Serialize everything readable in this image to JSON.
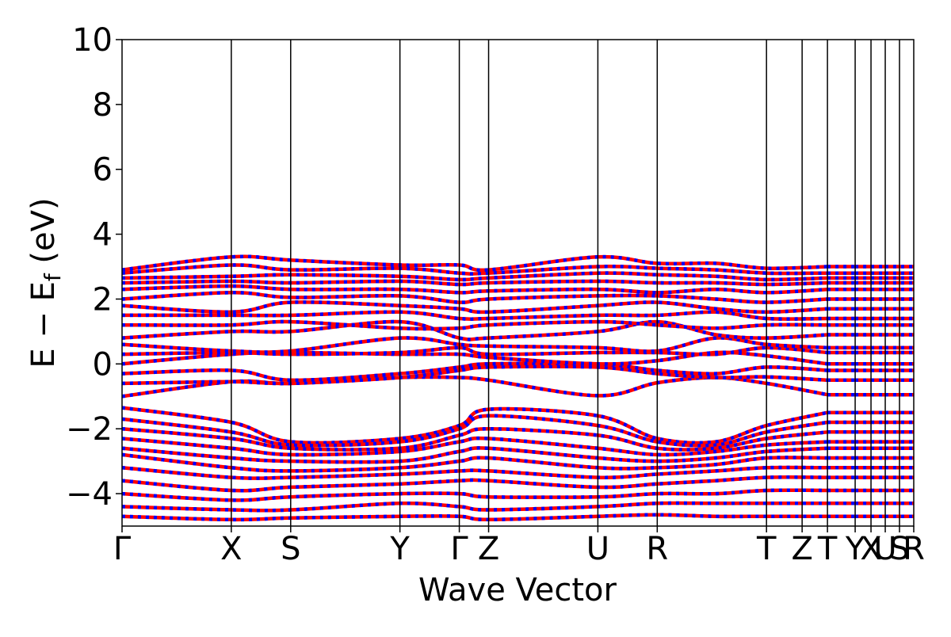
{
  "chart_data": {
    "type": "line",
    "title": "",
    "xlabel": "Wave Vector",
    "ylabel_parts": {
      "main": "E − E",
      "sub": "f",
      "unit": " (eV)"
    },
    "ylim": [
      -5,
      10
    ],
    "yticks": [
      -4,
      -2,
      0,
      2,
      4,
      6,
      8,
      10
    ],
    "ytick_labels": [
      "−4",
      "−2",
      "0",
      "2",
      "4",
      "6",
      "8",
      "10"
    ],
    "xlim": [
      0,
      100
    ],
    "kpoints": [
      {
        "label": "Γ",
        "x": 0
      },
      {
        "label": "X",
        "x": 13.8
      },
      {
        "label": "S",
        "x": 21.3
      },
      {
        "label": "Y",
        "x": 35.1
      },
      {
        "label": "Γ",
        "x": 42.6
      },
      {
        "label": "Z",
        "x": 46.3
      },
      {
        "label": "U",
        "x": 60.1
      },
      {
        "label": "R",
        "x": 67.6
      },
      {
        "label": "T",
        "x": 81.4
      },
      {
        "label": "Z",
        "x": 85.9
      },
      {
        "label": "T",
        "x": 89.1
      },
      {
        "label": "Y",
        "x": 92.6
      },
      {
        "label": "X",
        "x": 94.6
      },
      {
        "label": "U",
        "x": 96.4
      },
      {
        "label": "S",
        "x": 98.2
      },
      {
        "label": "R",
        "x": 100
      }
    ],
    "segments": [
      [
        0,
        89.1
      ],
      [
        89.1,
        92.6
      ],
      [
        92.6,
        96.4
      ],
      [
        96.4,
        100
      ]
    ],
    "grid": false,
    "legend": "none",
    "series_colors": {
      "spin_up": "#0000ff",
      "spin_down": "#ff0000"
    },
    "bands_description_note_removed": true,
    "bands": [
      [
        -1.0,
        -0.55,
        -0.6,
        -0.42,
        -0.42,
        -0.5,
        -0.98,
        -0.58,
        -0.42,
        -0.6,
        -0.95
      ],
      [
        -0.6,
        -0.55,
        -0.6,
        -0.42,
        -0.2,
        -0.1,
        -0.1,
        -0.3,
        -0.42,
        -0.4,
        -0.5
      ],
      [
        -0.3,
        -0.2,
        -0.5,
        -0.3,
        -0.1,
        0.0,
        0.0,
        -0.2,
        -0.3,
        -0.1,
        -0.2
      ],
      [
        0.0,
        0.3,
        0.35,
        0.3,
        0.3,
        0.2,
        0.0,
        0.1,
        0.35,
        0.25,
        0.0
      ],
      [
        0.3,
        0.35,
        0.3,
        0.35,
        0.5,
        0.3,
        0.35,
        0.35,
        0.3,
        0.5,
        0.35
      ],
      [
        0.6,
        0.4,
        0.4,
        0.8,
        0.6,
        0.55,
        0.5,
        0.4,
        0.8,
        0.6,
        0.5
      ],
      [
        0.8,
        1.0,
        1.0,
        1.3,
        0.8,
        0.8,
        1.0,
        1.3,
        0.9,
        0.8,
        0.9
      ],
      [
        1.2,
        1.2,
        1.3,
        1.1,
        1.1,
        1.2,
        1.3,
        1.2,
        1.1,
        1.2,
        1.2
      ],
      [
        1.5,
        1.5,
        1.5,
        1.6,
        1.4,
        1.4,
        1.5,
        1.5,
        1.6,
        1.4,
        1.4
      ],
      [
        1.8,
        1.6,
        1.9,
        1.8,
        1.7,
        1.6,
        1.8,
        1.9,
        1.7,
        1.6,
        1.7
      ],
      [
        2.0,
        2.2,
        2.05,
        2.1,
        1.9,
        2.0,
        2.1,
        2.1,
        2.0,
        1.9,
        2.0
      ],
      [
        2.3,
        2.4,
        2.3,
        2.3,
        2.2,
        2.25,
        2.3,
        2.2,
        2.3,
        2.2,
        2.3
      ],
      [
        2.5,
        2.55,
        2.5,
        2.55,
        2.45,
        2.5,
        2.55,
        2.5,
        2.5,
        2.45,
        2.5
      ],
      [
        2.65,
        2.7,
        2.75,
        2.7,
        2.6,
        2.65,
        2.8,
        2.75,
        2.7,
        2.6,
        2.65
      ],
      [
        2.8,
        3.05,
        2.9,
        2.95,
        2.8,
        2.8,
        3.0,
        2.95,
        2.9,
        2.8,
        2.8
      ],
      [
        2.9,
        3.3,
        3.2,
        3.05,
        3.05,
        2.9,
        3.3,
        3.1,
        3.1,
        2.95,
        3.0
      ],
      [
        -1.35,
        -1.8,
        -2.4,
        -2.3,
        -1.9,
        -1.4,
        -1.6,
        -2.3,
        -2.4,
        -1.9,
        -1.5
      ],
      [
        -1.7,
        -2.1,
        -2.5,
        -2.4,
        -2.0,
        -1.6,
        -1.9,
        -2.4,
        -2.5,
        -2.1,
        -1.8
      ],
      [
        -2.0,
        -2.3,
        -2.6,
        -2.6,
        -2.2,
        -2.0,
        -2.2,
        -2.6,
        -2.6,
        -2.3,
        -2.1
      ],
      [
        -2.3,
        -2.6,
        -2.8,
        -2.7,
        -2.4,
        -2.3,
        -2.6,
        -2.8,
        -2.7,
        -2.5,
        -2.4
      ],
      [
        -2.6,
        -2.9,
        -3.0,
        -3.0,
        -2.7,
        -2.6,
        -2.9,
        -3.0,
        -2.9,
        -2.7,
        -2.6
      ],
      [
        -2.8,
        -3.2,
        -3.3,
        -3.2,
        -3.0,
        -2.9,
        -3.2,
        -3.2,
        -3.1,
        -2.9,
        -2.9
      ],
      [
        -3.2,
        -3.5,
        -3.5,
        -3.4,
        -3.3,
        -3.3,
        -3.5,
        -3.4,
        -3.3,
        -3.2,
        -3.2
      ],
      [
        -3.6,
        -3.9,
        -3.8,
        -3.7,
        -3.6,
        -3.6,
        -3.8,
        -3.7,
        -3.6,
        -3.5,
        -3.5
      ],
      [
        -4.0,
        -4.2,
        -4.1,
        -4.0,
        -4.0,
        -4.1,
        -4.1,
        -4.0,
        -4.0,
        -3.9,
        -3.9
      ],
      [
        -4.4,
        -4.5,
        -4.5,
        -4.3,
        -4.4,
        -4.5,
        -4.4,
        -4.3,
        -4.3,
        -4.3,
        -4.3
      ],
      [
        -4.7,
        -4.8,
        -4.75,
        -4.7,
        -4.7,
        -4.8,
        -4.7,
        -4.65,
        -4.7,
        -4.7,
        -4.7
      ]
    ],
    "band_x": [
      0,
      13.8,
      21.3,
      35.1,
      42.6,
      46.3,
      60.1,
      67.6,
      75.0,
      81.4,
      89.1
    ]
  }
}
